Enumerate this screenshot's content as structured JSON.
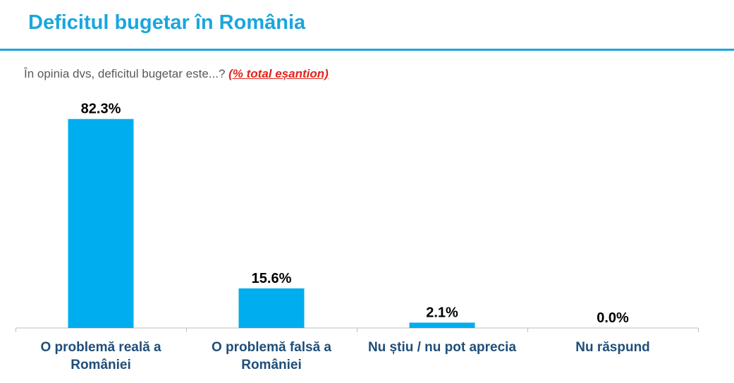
{
  "header": {
    "title": "Deficitul bugetar în România"
  },
  "subtitle": {
    "question": "În opinia dvs, deficitul bugetar este...? ",
    "note": "(% total eșantion)"
  },
  "colors": {
    "accent": "#1aa6de",
    "bar": "#00adef",
    "category_text": "#1f4e79",
    "note": "#e0241b"
  },
  "chart_data": {
    "type": "bar",
    "categories": [
      "O problemă reală a României",
      "O problemă falsă a României",
      "Nu știu / nu pot aprecia",
      "Nu răspund"
    ],
    "values": [
      82.3,
      15.6,
      2.1,
      0.0
    ],
    "data_labels": [
      "82.3%",
      "15.6%",
      "2.1%",
      "0.0%"
    ],
    "title": "Deficitul bugetar în România",
    "xlabel": "",
    "ylabel": "",
    "ylim": [
      0,
      100
    ],
    "grid": false,
    "legend": "none"
  }
}
